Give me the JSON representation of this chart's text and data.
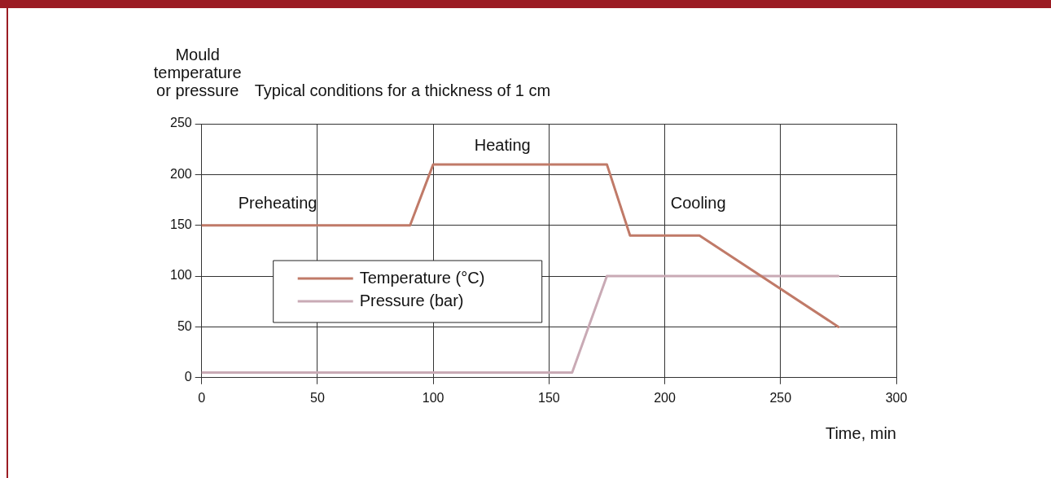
{
  "chart_data": {
    "type": "line",
    "title": "Typical conditions for a thickness of 1 cm",
    "ylabel": "Mould temperature or pressure",
    "xlabel": "Time, min",
    "series": [
      {
        "name": "Temperature (°C)",
        "color": "#c07a68",
        "x": [
          0,
          90,
          100,
          175,
          185,
          215,
          275
        ],
        "values": [
          150,
          150,
          210,
          210,
          140,
          140,
          50
        ]
      },
      {
        "name": "Pressure (bar)",
        "color": "#c9aab5",
        "x": [
          0,
          160,
          175,
          275
        ],
        "values": [
          5,
          5,
          100,
          100
        ]
      }
    ],
    "xlim": [
      0,
      300
    ],
    "xticks": [
      0,
      50,
      100,
      150,
      200,
      250,
      300
    ],
    "ylim": [
      0,
      250
    ],
    "yticks": [
      0,
      50,
      100,
      150,
      200,
      250
    ],
    "grid": true,
    "legend": "left",
    "marker": "none",
    "line_style": "solid",
    "annotations": [
      "Preheating",
      "Heating",
      "Cooling"
    ]
  }
}
